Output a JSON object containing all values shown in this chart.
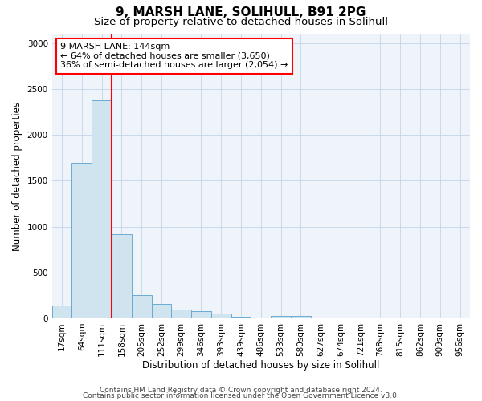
{
  "title": "9, MARSH LANE, SOLIHULL, B91 2PG",
  "subtitle": "Size of property relative to detached houses in Solihull",
  "xlabel": "Distribution of detached houses by size in Solihull",
  "ylabel": "Number of detached properties",
  "bin_labels": [
    "17sqm",
    "64sqm",
    "111sqm",
    "158sqm",
    "205sqm",
    "252sqm",
    "299sqm",
    "346sqm",
    "393sqm",
    "439sqm",
    "486sqm",
    "533sqm",
    "580sqm",
    "627sqm",
    "674sqm",
    "721sqm",
    "768sqm",
    "815sqm",
    "862sqm",
    "909sqm",
    "956sqm"
  ],
  "bar_values": [
    140,
    1700,
    2380,
    920,
    255,
    155,
    95,
    75,
    50,
    18,
    8,
    25,
    25,
    0,
    0,
    0,
    0,
    0,
    0,
    0,
    0
  ],
  "bar_color": "#d0e4f0",
  "bar_edge_color": "#6aaad4",
  "vline_x": 2.5,
  "vline_color": "red",
  "annotation_text": "9 MARSH LANE: 144sqm\n← 64% of detached houses are smaller (3,650)\n36% of semi-detached houses are larger (2,054) →",
  "annotation_box_color": "white",
  "annotation_box_edge_color": "red",
  "ylim": [
    0,
    3100
  ],
  "yticks": [
    0,
    500,
    1000,
    1500,
    2000,
    2500,
    3000
  ],
  "footer_line1": "Contains HM Land Registry data © Crown copyright and database right 2024.",
  "footer_line2": "Contains public sector information licensed under the Open Government Licence v3.0.",
  "title_fontsize": 11,
  "subtitle_fontsize": 9.5,
  "axis_label_fontsize": 8.5,
  "tick_fontsize": 7.5,
  "footer_fontsize": 6.5,
  "annot_fontsize": 8
}
